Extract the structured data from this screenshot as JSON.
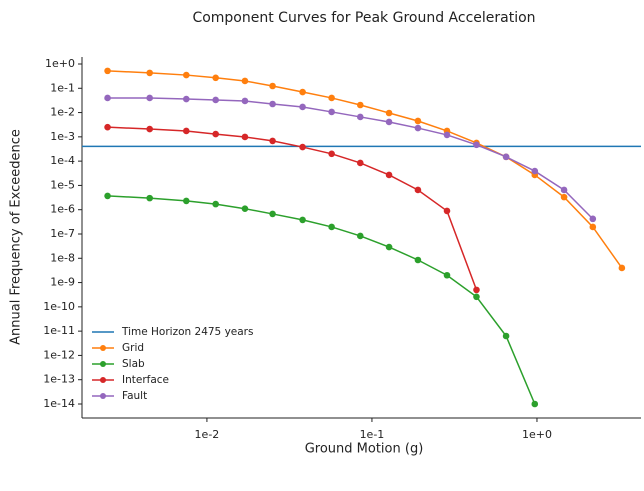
{
  "chart_data": {
    "type": "line",
    "title": "Component Curves for Peak Ground Acceleration",
    "x_label": "Ground Motion (g)",
    "y_label": "Annual Frequency of Exceedence",
    "log_x": true,
    "log_y": true,
    "xlim": [
      0.00175,
      4.27
    ],
    "ylim": [
      2.65e-15,
      1.94
    ],
    "xticks": [
      {
        "value": 0.01,
        "label": "1e-2"
      },
      {
        "value": 0.1,
        "label": "1e-1"
      },
      {
        "value": 1,
        "label": "1e+0"
      }
    ],
    "yticks": [
      {
        "value": 1,
        "label": "1e+0"
      },
      {
        "value": 0.1,
        "label": "1e-1"
      },
      {
        "value": 0.01,
        "label": "1e-2"
      },
      {
        "value": 0.001,
        "label": "1e-3"
      },
      {
        "value": 0.0001,
        "label": "1e-4"
      },
      {
        "value": 1e-05,
        "label": "1e-5"
      },
      {
        "value": 1e-06,
        "label": "1e-6"
      },
      {
        "value": 1e-07,
        "label": "1e-7"
      },
      {
        "value": 1e-08,
        "label": "1e-8"
      },
      {
        "value": 1e-09,
        "label": "1e-9"
      },
      {
        "value": 1e-10,
        "label": "1e-10"
      },
      {
        "value": 1e-11,
        "label": "1e-11"
      },
      {
        "value": 1e-12,
        "label": "1e-12"
      },
      {
        "value": 1e-13,
        "label": "1e-13"
      },
      {
        "value": 1e-14,
        "label": "1e-14"
      }
    ],
    "legend": "lower left",
    "series": [
      {
        "name": "Time Horizon 2475 years",
        "color": "#1f77b4",
        "value": 0.000404
      },
      {
        "name": "Grid",
        "color": "#ff7f0e",
        "x": [
          0.0025,
          0.0045,
          0.0075,
          0.0113,
          0.017,
          0.025,
          0.038,
          0.057,
          0.085,
          0.127,
          0.19,
          0.285,
          0.43,
          0.65,
          0.97,
          1.46,
          2.18,
          3.27
        ],
        "values": [
          0.52,
          0.43,
          0.35,
          0.27,
          0.2,
          0.124,
          0.07,
          0.04,
          0.0205,
          0.0096,
          0.0045,
          0.00175,
          0.00056,
          0.00015,
          2.7e-05,
          3.3e-06,
          1.95e-07,
          4e-09
        ]
      },
      {
        "name": "Slab",
        "color": "#2ca02c",
        "x": [
          0.0025,
          0.0045,
          0.0075,
          0.0113,
          0.017,
          0.025,
          0.038,
          0.057,
          0.085,
          0.127,
          0.19,
          0.285,
          0.43,
          0.65,
          0.97
        ],
        "values": [
          3.7e-06,
          3e-06,
          2.3e-06,
          1.7e-06,
          1.1e-06,
          6.7e-07,
          3.8e-07,
          1.95e-07,
          8.3e-08,
          2.9e-08,
          8.5e-09,
          2e-09,
          2.6e-10,
          6.3e-12,
          1e-14
        ]
      },
      {
        "name": "Interface",
        "color": "#d62728",
        "x": [
          0.0025,
          0.0045,
          0.0075,
          0.0113,
          0.017,
          0.025,
          0.038,
          0.057,
          0.085,
          0.127,
          0.19,
          0.285,
          0.43
        ],
        "values": [
          0.0025,
          0.0021,
          0.00175,
          0.0013,
          0.00099,
          0.00068,
          0.00038,
          0.0002,
          8.4e-05,
          2.7e-05,
          6.5e-06,
          8.9e-07,
          5e-10
        ]
      },
      {
        "name": "Fault",
        "color": "#9467bd",
        "x": [
          0.0025,
          0.0045,
          0.0075,
          0.0113,
          0.017,
          0.025,
          0.038,
          0.057,
          0.085,
          0.127,
          0.19,
          0.285,
          0.43,
          0.65,
          0.97,
          1.46,
          2.18
        ],
        "values": [
          0.04,
          0.04,
          0.036,
          0.033,
          0.03,
          0.0225,
          0.017,
          0.0106,
          0.0066,
          0.0041,
          0.0023,
          0.0012,
          0.00047,
          0.00015,
          3.9e-05,
          6.5e-06,
          4.2e-07
        ]
      }
    ]
  }
}
